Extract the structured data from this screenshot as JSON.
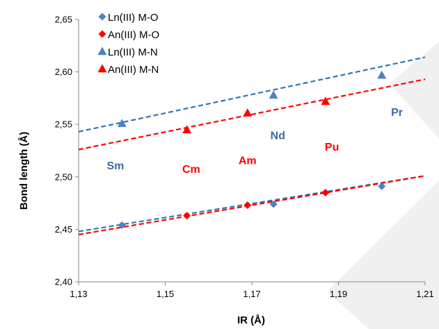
{
  "chart_data": {
    "type": "scatter",
    "xlabel": "IR (Å)",
    "ylabel": "Bond length (Å)",
    "xlim": [
      1.13,
      1.21
    ],
    "ylim": [
      2.4,
      2.65
    ],
    "x_ticks": [
      "1,13",
      "1,15",
      "1,17",
      "1,19",
      "1,21"
    ],
    "y_ticks": [
      "2,40",
      "2,45",
      "2,50",
      "2,55",
      "2,60",
      "2,65"
    ],
    "grid": false,
    "legend_position": "top-left",
    "series": [
      {
        "name": "Ln(III) M-O",
        "marker": "diamond",
        "color": "#4f81bd",
        "points": [
          [
            1.14,
            2.454
          ],
          [
            1.175,
            2.474
          ],
          [
            1.2,
            2.491
          ]
        ],
        "trendline": [
          [
            1.13,
            2.448
          ],
          [
            1.21,
            2.501
          ]
        ],
        "trend_color": "#2e75b6"
      },
      {
        "name": "An(III) M-O",
        "marker": "diamond",
        "color": "#ff0000",
        "points": [
          [
            1.155,
            2.463
          ],
          [
            1.169,
            2.473
          ],
          [
            1.187,
            2.485
          ]
        ],
        "trendline": [
          [
            1.13,
            2.445
          ],
          [
            1.21,
            2.501
          ]
        ],
        "trend_color": "#ff0000"
      },
      {
        "name": "Ln(III) M-N",
        "marker": "triangle",
        "color": "#4f81bd",
        "points": [
          [
            1.14,
            2.551
          ],
          [
            1.175,
            2.578
          ],
          [
            1.2,
            2.597
          ]
        ],
        "trendline": [
          [
            1.13,
            2.543
          ],
          [
            1.21,
            2.614
          ]
        ],
        "trend_color": "#2e75b6"
      },
      {
        "name": "An(III) M-N",
        "marker": "triangle",
        "color": "#ff0000",
        "points": [
          [
            1.155,
            2.545
          ],
          [
            1.169,
            2.561
          ],
          [
            1.187,
            2.572
          ]
        ],
        "trendline": [
          [
            1.13,
            2.526
          ],
          [
            1.21,
            2.593
          ]
        ],
        "trend_color": "#ff0000"
      }
    ],
    "annotations": [
      {
        "text": "Sm",
        "x": 1.1385,
        "y": 2.507,
        "color": "#3d6aa3"
      },
      {
        "text": "Cm",
        "x": 1.156,
        "y": 2.504,
        "color": "#ff0000"
      },
      {
        "text": "Am",
        "x": 1.169,
        "y": 2.512,
        "color": "#ff0000"
      },
      {
        "text": "Nd",
        "x": 1.176,
        "y": 2.536,
        "color": "#3d6aa3"
      },
      {
        "text": "Pu",
        "x": 1.1885,
        "y": 2.525,
        "color": "#ff0000"
      },
      {
        "text": "Pr",
        "x": 1.2035,
        "y": 2.558,
        "color": "#3d6aa3"
      }
    ]
  }
}
